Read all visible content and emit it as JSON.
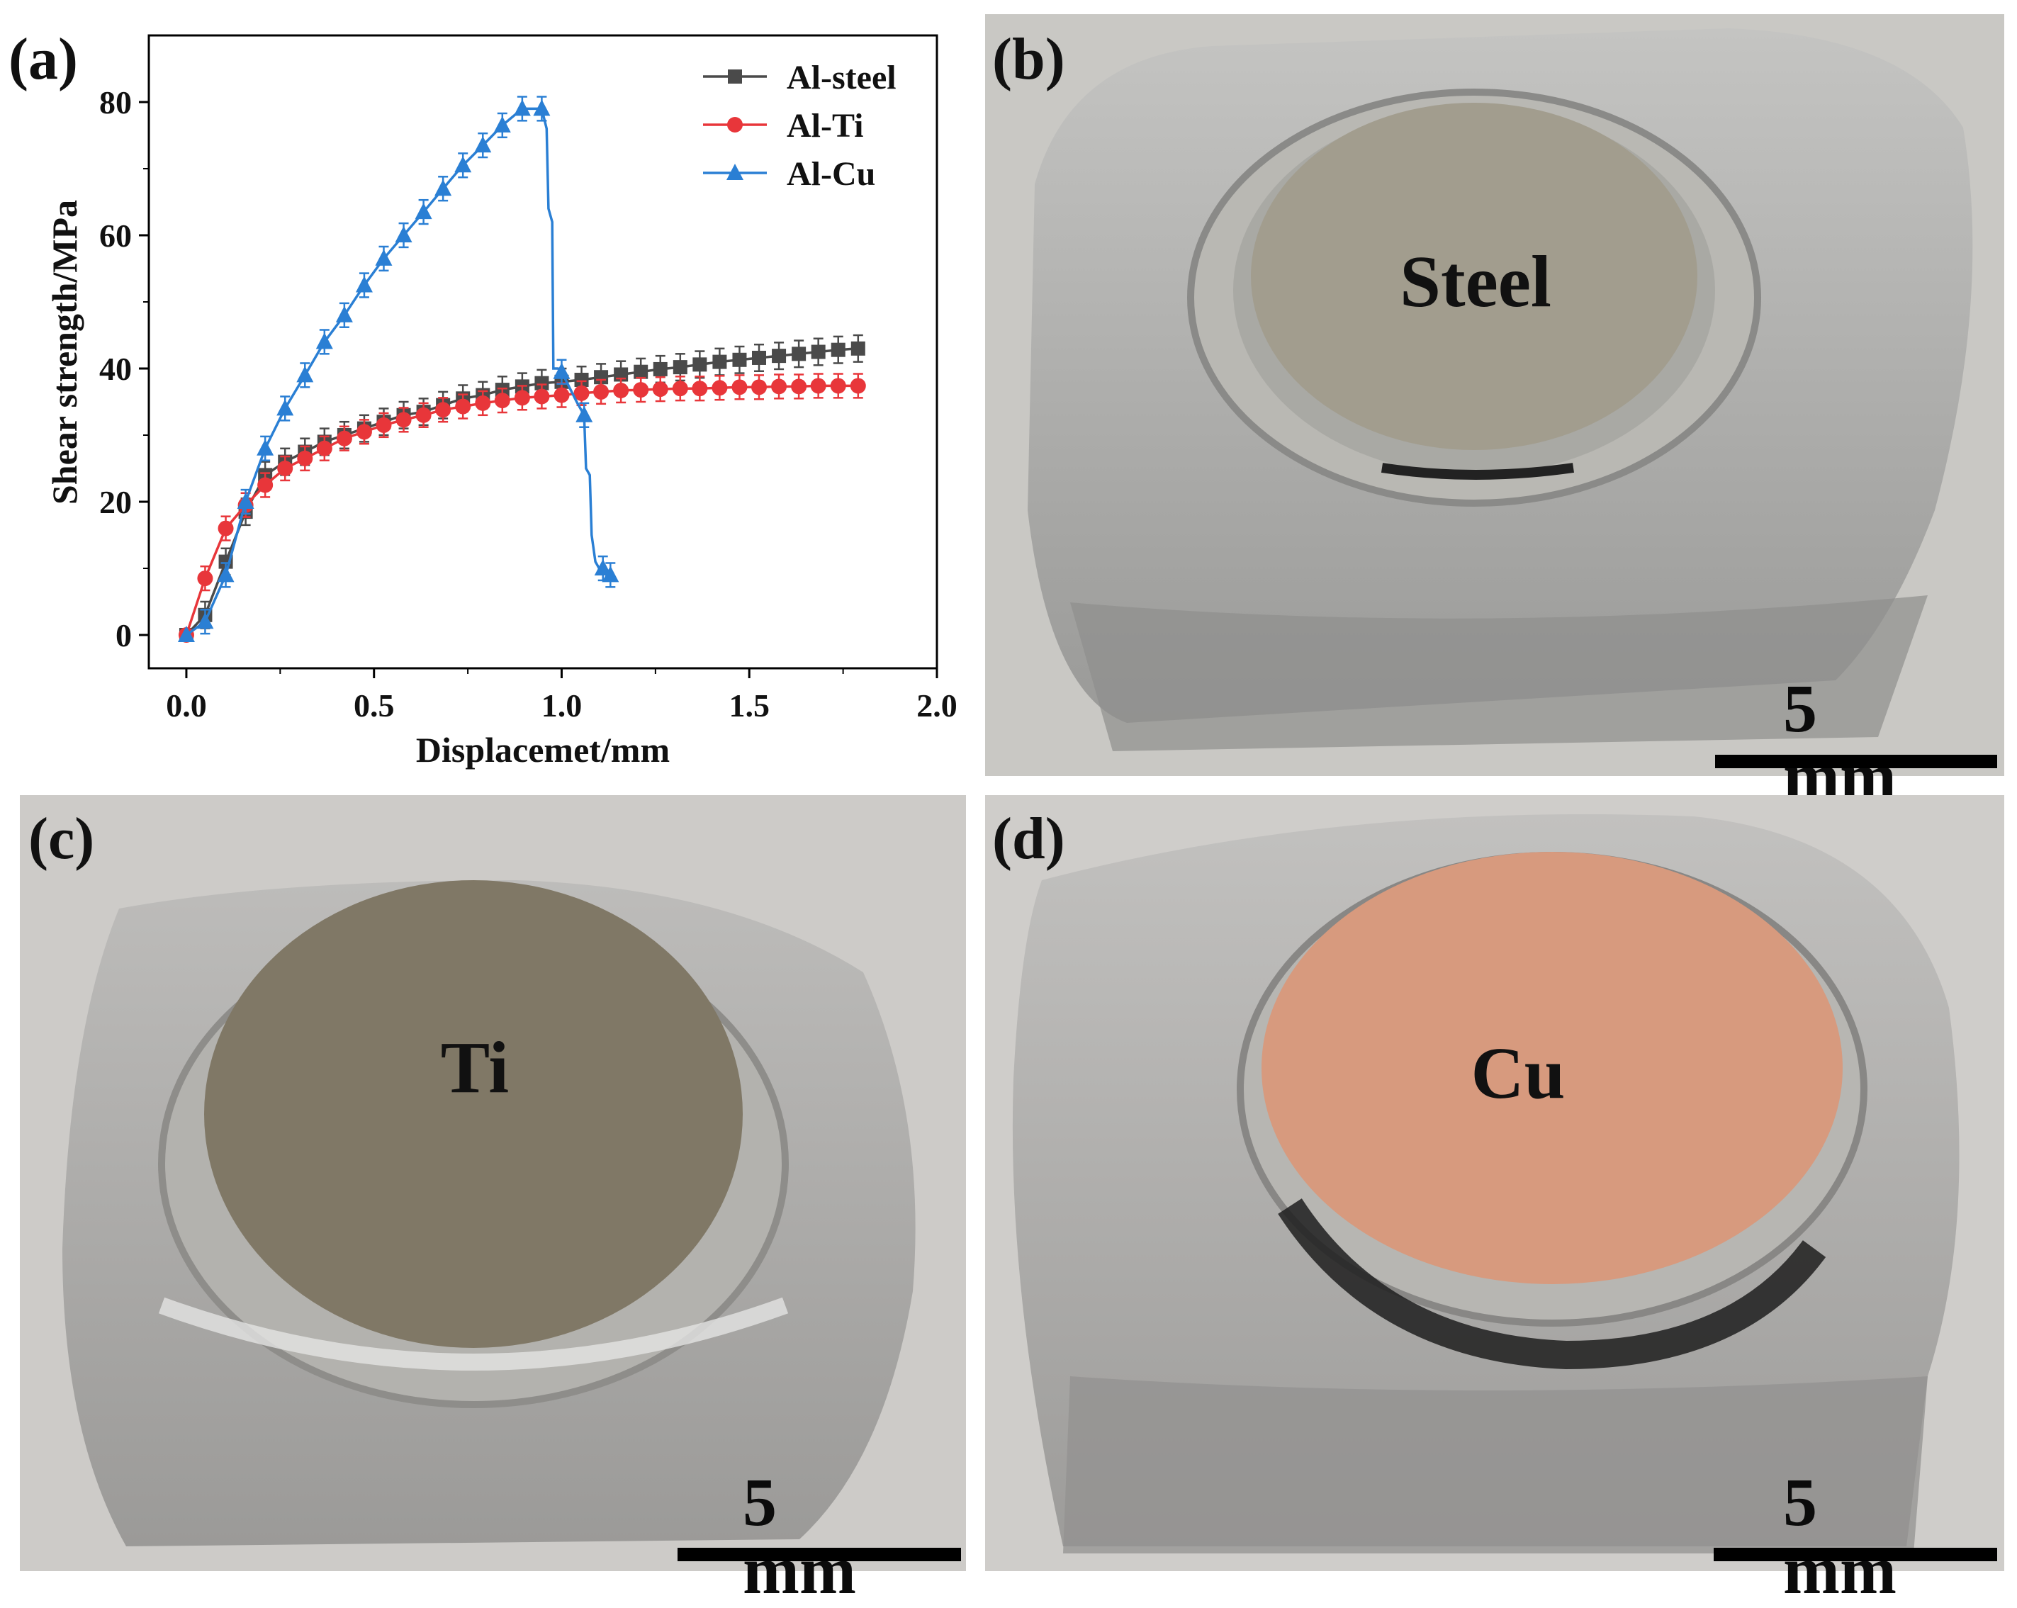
{
  "panels": {
    "a": "(a)",
    "b": "(b)",
    "c": "(c)",
    "d": "(d)"
  },
  "photos": {
    "b": {
      "sample_label": "Steel",
      "scale_label": "5 mm",
      "disc_color": "#a29d8e"
    },
    "c": {
      "sample_label": "Ti",
      "scale_label": "5 mm",
      "disc_color": "#807866"
    },
    "d": {
      "sample_label": "Cu",
      "scale_label": "5 mm",
      "disc_color": "#d79a7e"
    }
  },
  "chart_data": {
    "type": "line",
    "xlabel": "Displacemet/mm",
    "ylabel": "Shear strength/MPa",
    "xlim": [
      -0.1,
      2.0
    ],
    "ylim": [
      -5,
      90
    ],
    "xticks": [
      "0.0",
      "0.5",
      "1.0",
      "1.5",
      "2.0"
    ],
    "yticks": [
      "0",
      "20",
      "40",
      "60",
      "80"
    ],
    "xtick_values": [
      0,
      0.5,
      1.0,
      1.5,
      2.0
    ],
    "ytick_values": [
      0,
      20,
      40,
      60,
      80
    ],
    "legend_position": "top-right",
    "series": [
      {
        "name": "Al-steel",
        "color": "#4a4a4a",
        "marker": "square",
        "error": 2.0,
        "x": [
          0,
          0.05,
          0.105,
          0.158,
          0.21,
          0.263,
          0.316,
          0.368,
          0.421,
          0.474,
          0.526,
          0.579,
          0.632,
          0.684,
          0.737,
          0.79,
          0.842,
          0.895,
          0.947,
          1.0,
          1.053,
          1.105,
          1.158,
          1.211,
          1.263,
          1.316,
          1.368,
          1.421,
          1.474,
          1.526,
          1.579,
          1.632,
          1.684,
          1.737,
          1.79
        ],
        "y": [
          0,
          3,
          11,
          18.5,
          24,
          26,
          27.5,
          29,
          30,
          31,
          32,
          33,
          33.5,
          34.5,
          35.5,
          36,
          36.8,
          37.3,
          37.8,
          38,
          38.3,
          38.7,
          39.1,
          39.5,
          39.9,
          40.2,
          40.6,
          41,
          41.3,
          41.6,
          41.9,
          42.2,
          42.5,
          42.8,
          43
        ]
      },
      {
        "name": "Al-Ti",
        "color": "#e8363a",
        "marker": "circle",
        "error": 1.8,
        "x": [
          0,
          0.05,
          0.105,
          0.158,
          0.21,
          0.263,
          0.316,
          0.368,
          0.421,
          0.474,
          0.526,
          0.579,
          0.632,
          0.684,
          0.737,
          0.79,
          0.842,
          0.895,
          0.947,
          1.0,
          1.053,
          1.105,
          1.158,
          1.211,
          1.263,
          1.316,
          1.368,
          1.421,
          1.474,
          1.526,
          1.579,
          1.632,
          1.684,
          1.737,
          1.79
        ],
        "y": [
          0,
          8.5,
          16,
          19.5,
          22.5,
          25,
          26.5,
          28,
          29.5,
          30.5,
          31.5,
          32.3,
          33,
          33.8,
          34.3,
          34.8,
          35.2,
          35.6,
          35.8,
          36,
          36.3,
          36.5,
          36.7,
          36.8,
          36.9,
          37,
          37,
          37.1,
          37.2,
          37.2,
          37.3,
          37.3,
          37.4,
          37.4,
          37.4
        ]
      },
      {
        "name": "Al-Cu",
        "color": "#2a7fd4",
        "marker": "triangle",
        "error": 1.8,
        "x": [
          0,
          0.05,
          0.105,
          0.158,
          0.21,
          0.263,
          0.316,
          0.368,
          0.421,
          0.474,
          0.526,
          0.579,
          0.632,
          0.684,
          0.737,
          0.79,
          0.842,
          0.895,
          0.947,
          1.0,
          1.06,
          1.11,
          1.13
        ],
        "y": [
          0,
          2,
          9,
          20,
          28,
          34,
          39,
          44,
          48,
          52.5,
          56.5,
          60,
          63.5,
          67,
          70.5,
          73.5,
          76.5,
          79,
          79,
          39.5,
          33,
          10,
          9
        ],
        "path_x": [
          0,
          0.05,
          0.105,
          0.158,
          0.21,
          0.263,
          0.316,
          0.368,
          0.421,
          0.474,
          0.526,
          0.579,
          0.632,
          0.684,
          0.737,
          0.79,
          0.842,
          0.895,
          0.947,
          0.96,
          0.965,
          0.975,
          0.978,
          0.99,
          1.0,
          1.04,
          1.06,
          1.065,
          1.075,
          1.08,
          1.09,
          1.1,
          1.11,
          1.13
        ],
        "path_y": [
          0,
          2,
          9,
          20,
          28,
          34,
          39,
          44,
          48,
          52.5,
          56.5,
          60,
          63.5,
          67,
          70.5,
          73.5,
          76.5,
          79,
          79,
          76,
          64,
          62,
          40,
          40,
          39.5,
          35,
          33,
          25,
          24,
          15,
          11,
          10,
          10,
          9
        ]
      }
    ]
  }
}
